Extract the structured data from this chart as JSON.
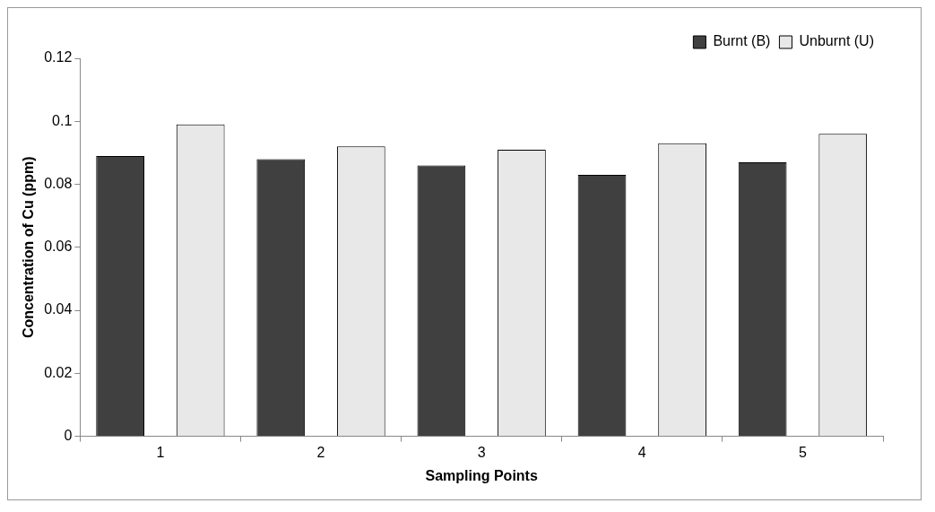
{
  "chart_data": {
    "type": "bar",
    "xlabel": "Sampling Points",
    "ylabel": "Concentration of Cu (ppm)",
    "categories": [
      "1",
      "2",
      "3",
      "4",
      "5"
    ],
    "series": [
      {
        "name": "Burnt (B)",
        "color": "#404040",
        "values": [
          0.089,
          0.088,
          0.086,
          0.083,
          0.087
        ]
      },
      {
        "name": "Unburnt (U)",
        "color": "#e8e8e8",
        "values": [
          0.099,
          0.092,
          0.091,
          0.093,
          0.096
        ]
      }
    ],
    "ylim": [
      0,
      0.12
    ],
    "yticks": [
      0,
      0.02,
      0.04,
      0.06,
      0.08,
      0.1,
      0.12
    ],
    "grid": false,
    "legend": "top right"
  }
}
